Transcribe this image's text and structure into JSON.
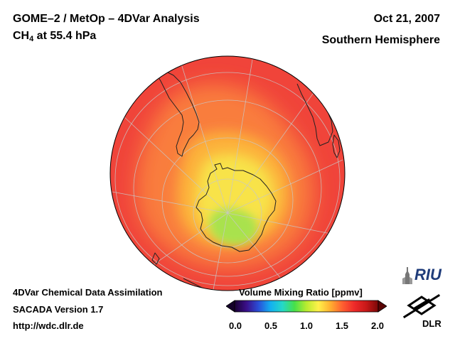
{
  "header": {
    "title_line1": "GOME–2 / MetOp – 4DVar Analysis",
    "title_line2_prefix": "CH",
    "title_line2_sub": "4",
    "title_line2_suffix": " at 55.4 hPa",
    "date": "Oct 21, 2007",
    "hemisphere": "Southern Hemisphere"
  },
  "footer": {
    "line1": "4DVar Chemical Data Assimilation",
    "line2": "SACADA Version 1.7",
    "line3": "http://wdc.dlr.de"
  },
  "colorbar": {
    "title": "Volume Mixing Ratio [ppmv]",
    "ticks": [
      "0.0",
      "0.5",
      "1.0",
      "1.5",
      "2.0"
    ],
    "range": [
      0.0,
      2.0
    ],
    "colors": [
      "#1a0033",
      "#3a0f8a",
      "#2a4fd8",
      "#13b0f0",
      "#25d8c8",
      "#46e04a",
      "#b8ec30",
      "#fff04a",
      "#ffb030",
      "#ff6030",
      "#ee2a2a",
      "#c81818",
      "#7a0808"
    ],
    "underflow_color": "#14002a",
    "overflow_color": "#5a0404"
  },
  "field_colors": {
    "background": "#f0443a",
    "ring": "#f97d3e",
    "inner": "#fcb13a",
    "core": "#f8e34a",
    "minimum": "#a9e24e"
  },
  "logos": {
    "riu": "RIU",
    "dlr": "DLR"
  }
}
